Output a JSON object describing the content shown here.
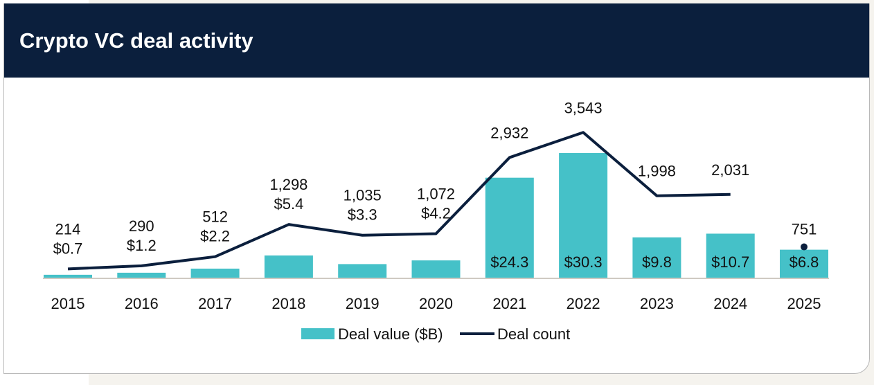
{
  "header": {
    "title": "Crypto VC deal activity"
  },
  "colors": {
    "header_bg": "#0b1f3d",
    "bar": "#45c1c8",
    "line": "#0b1f3d"
  },
  "chart_data": {
    "type": "bar+line",
    "title": "Crypto VC deal activity",
    "categories": [
      "2015",
      "2016",
      "2017",
      "2018",
      "2019",
      "2020",
      "2021",
      "2022",
      "2023",
      "2024",
      "2025"
    ],
    "series": [
      {
        "name": "Deal value ($B)",
        "type": "bar",
        "values": [
          0.7,
          1.2,
          2.2,
          5.4,
          3.3,
          4.2,
          24.3,
          30.3,
          9.8,
          10.7,
          6.8
        ],
        "labels": [
          "$0.7",
          "$1.2",
          "$2.2",
          "$5.4",
          "$3.3",
          "$4.2",
          "$24.3",
          "$30.3",
          "$9.8",
          "$10.7",
          "$6.8"
        ]
      },
      {
        "name": "Deal count",
        "type": "line",
        "values": [
          214,
          290,
          512,
          1298,
          1035,
          1072,
          2932,
          3543,
          1998,
          2031,
          751
        ],
        "labels": [
          "214",
          "290",
          "512",
          "1,298",
          "1,035",
          "1,072",
          "2,932",
          "3,543",
          "1,998",
          "2,031",
          "751"
        ],
        "note_2025": "point only, not connected"
      }
    ],
    "legend": "bottom",
    "grid": false
  }
}
